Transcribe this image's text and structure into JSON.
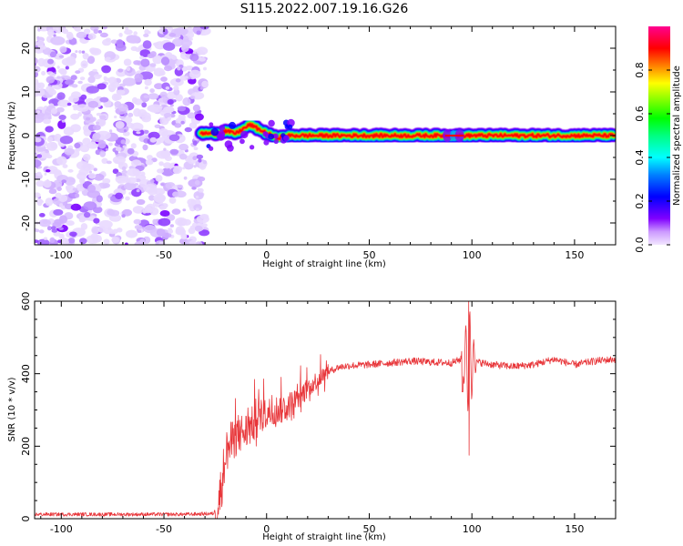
{
  "figure_title": "S115.2022.007.19.16.G26",
  "chart_data": [
    {
      "type": "heatmap",
      "xlabel": "Height of straight line (km)",
      "ylabel": "Frequency (Hz)",
      "xlim": [
        -113,
        170
      ],
      "ylim": [
        -25,
        25
      ],
      "x_ticks": [
        -100,
        -50,
        0,
        50,
        100,
        150
      ],
      "y_ticks": [
        -20,
        -10,
        0,
        10,
        20
      ],
      "colorbar": {
        "label": "Normalized spectral amplitude",
        "range": [
          0,
          1
        ],
        "ticks": [
          "0.0",
          "0.2",
          "0.4",
          "0.6",
          "0.8"
        ],
        "colormap": "gist_rainbow"
      },
      "features": {
        "noise_region_x": [
          -113,
          -30
        ],
        "noise_amplitude": 0.15,
        "tone_start_x": -32,
        "tone_frequency_hz": 0,
        "tone_amplitude": 1.0,
        "tone_wobble_points": [
          [
            -32,
            0.5
          ],
          [
            -25,
            0.5
          ],
          [
            -20,
            1.0
          ],
          [
            -15,
            0.5
          ],
          [
            -8,
            2.5
          ],
          [
            -4,
            1.5
          ],
          [
            0,
            0.5
          ],
          [
            5,
            -0.5
          ],
          [
            12,
            0
          ],
          [
            170,
            0
          ]
        ],
        "tone_disturbance_x": [
          88,
          95
        ]
      }
    },
    {
      "type": "line",
      "xlabel": "Height of straight line (km)",
      "ylabel": "SNR (10 * v/v)",
      "xlim": [
        -113,
        170
      ],
      "ylim": [
        0,
        600
      ],
      "x_ticks": [
        -100,
        -50,
        0,
        50,
        100,
        150
      ],
      "y_ticks": [
        0,
        200,
        400,
        600
      ],
      "series": [
        {
          "color": "#e8363a",
          "profile": [
            [
              -113,
              12
            ],
            [
              -40,
              12
            ],
            [
              -26,
              14
            ],
            [
              -24,
              30
            ],
            [
              -22,
              90
            ],
            [
              -20,
              180
            ],
            [
              -15,
              230
            ],
            [
              -10,
              240
            ],
            [
              -5,
              270
            ],
            [
              0,
              290
            ],
            [
              5,
              300
            ],
            [
              10,
              310
            ],
            [
              15,
              330
            ],
            [
              20,
              360
            ],
            [
              25,
              385
            ],
            [
              30,
              405
            ],
            [
              35,
              418
            ],
            [
              40,
              422
            ],
            [
              50,
              425
            ],
            [
              60,
              430
            ],
            [
              70,
              435
            ],
            [
              80,
              432
            ],
            [
              90,
              430
            ],
            [
              95,
              440
            ],
            [
              100,
              435
            ],
            [
              110,
              425
            ],
            [
              120,
              420
            ],
            [
              130,
              425
            ],
            [
              140,
              440
            ],
            [
              150,
              425
            ],
            [
              160,
              435
            ],
            [
              170,
              440
            ]
          ],
          "noise_amplitude_low": 5,
          "noise_amplitude_ramp": 60,
          "noise_amplitude_high": 10,
          "spike_x": 98.5,
          "spike_max": 600,
          "spike_min": 175
        }
      ]
    }
  ]
}
